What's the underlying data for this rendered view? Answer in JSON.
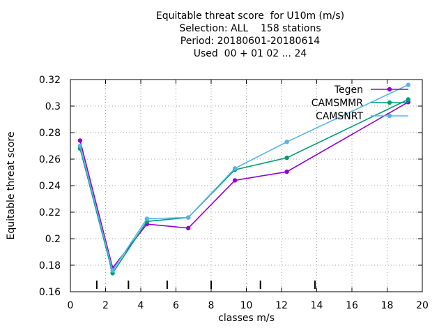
{
  "chart_data": {
    "type": "line",
    "title_lines": [
      "Equitable threat score  for U10m (m/s)",
      "Selection: ALL    158 stations",
      "Period: 20180601-20180614",
      "Used  00 + 01 02 ... 24"
    ],
    "xlabel": "classes m/s",
    "ylabel": "Equitable threat score",
    "xlim": [
      0,
      20
    ],
    "ylim": [
      0.16,
      0.32
    ],
    "xticks": [
      0,
      2,
      4,
      6,
      8,
      10,
      12,
      14,
      16,
      18,
      20
    ],
    "yticks": [
      0.16,
      0.18,
      0.2,
      0.22,
      0.24,
      0.26,
      0.28,
      0.3,
      0.32
    ],
    "ytick_labels": [
      "0.16",
      "0.18",
      "0.2",
      "0.22",
      "0.24",
      "0.26",
      "0.28",
      "0.3",
      "0.32"
    ],
    "class_bounds": [
      1.5,
      3.3,
      5.5,
      8.0,
      10.8,
      13.9
    ],
    "grid": true,
    "legend_position": "top-right",
    "series": [
      {
        "name": "Tegen",
        "color": "#9400d3",
        "x": [
          0.55,
          2.4,
          4.35,
          6.7,
          9.35,
          12.3,
          19.2
        ],
        "y": [
          0.274,
          0.178,
          0.211,
          0.208,
          0.244,
          0.2505,
          0.303
        ]
      },
      {
        "name": "CAMSMMR",
        "color": "#009e73",
        "x": [
          0.55,
          2.4,
          4.35,
          6.7,
          9.35,
          12.3,
          19.2
        ],
        "y": [
          0.268,
          0.174,
          0.213,
          0.216,
          0.252,
          0.261,
          0.305
        ]
      },
      {
        "name": "CAMSNRT",
        "color": "#56b4e9",
        "x": [
          0.55,
          2.4,
          4.35,
          6.7,
          9.35,
          12.3,
          19.2
        ],
        "y": [
          0.27,
          0.176,
          0.215,
          0.216,
          0.253,
          0.273,
          0.316
        ]
      }
    ]
  }
}
